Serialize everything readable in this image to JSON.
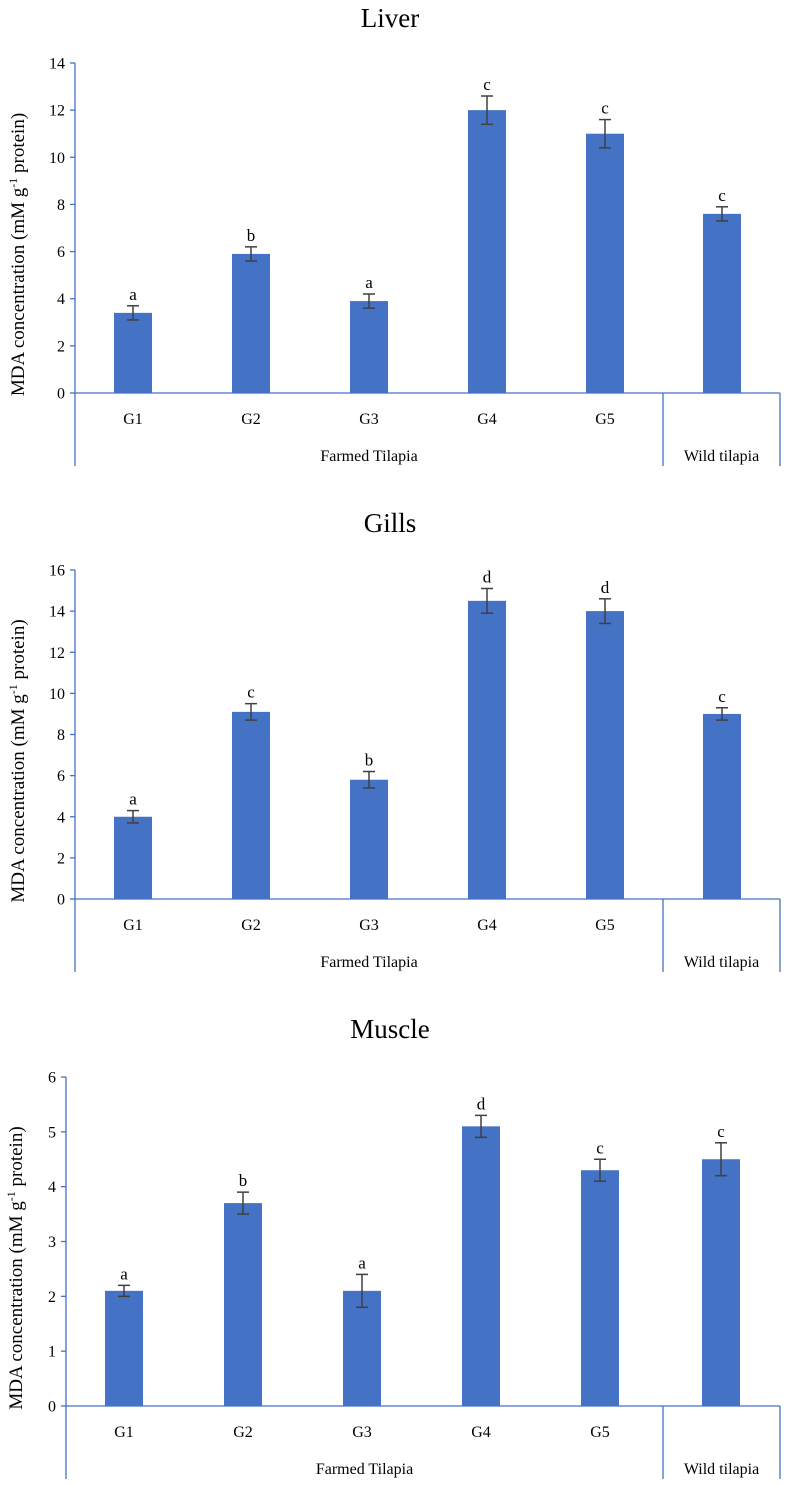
{
  "chart_data": [
    {
      "type": "bar",
      "title": "Liver",
      "ylabel": "MDA concentration (mM g-1 protein)",
      "ylabel_parts": {
        "prefix": "MDA concentration (mM g",
        "sup": "-1",
        "suffix": " protein)"
      },
      "ylim": [
        0,
        14
      ],
      "yticks": [
        0,
        2,
        4,
        6,
        8,
        10,
        12,
        14
      ],
      "categories": [
        "G1",
        "G2",
        "G3",
        "G4",
        "G5",
        ""
      ],
      "values": [
        3.4,
        5.9,
        3.9,
        12.0,
        11.0,
        7.6
      ],
      "errors": [
        0.3,
        0.3,
        0.3,
        0.6,
        0.6,
        0.3
      ],
      "significance": [
        "a",
        "b",
        "a",
        "c",
        "c",
        "c"
      ],
      "groups": [
        {
          "label": "Farmed Tilapia",
          "span": [
            0,
            4
          ]
        },
        {
          "label": "Wild tilapia",
          "span": [
            5,
            5
          ]
        }
      ],
      "color": "#4472C4"
    },
    {
      "type": "bar",
      "title": "Gills",
      "ylabel": "MDA concentration (mM g-1 protein)",
      "ylabel_parts": {
        "prefix": "MDA concentration (mM g",
        "sup": "-1",
        "suffix": " protein)"
      },
      "ylim": [
        0,
        16
      ],
      "yticks": [
        0,
        2,
        4,
        6,
        8,
        10,
        12,
        14,
        16
      ],
      "categories": [
        "G1",
        "G2",
        "G3",
        "G4",
        "G5",
        ""
      ],
      "values": [
        4.0,
        9.1,
        5.8,
        14.5,
        14.0,
        9.0
      ],
      "errors": [
        0.3,
        0.4,
        0.4,
        0.6,
        0.6,
        0.3
      ],
      "significance": [
        "a",
        "c",
        "b",
        "d",
        "d",
        "c"
      ],
      "groups": [
        {
          "label": "Farmed Tilapia",
          "span": [
            0,
            4
          ]
        },
        {
          "label": "Wild tilapia",
          "span": [
            5,
            5
          ]
        }
      ],
      "color": "#4472C4"
    },
    {
      "type": "bar",
      "title": "Muscle",
      "ylabel": "MDA concentration (mM g-1 protein)",
      "ylabel_parts": {
        "prefix": "MDA concentration (mM g",
        "sup": "-1",
        "suffix": " protein)"
      },
      "ylim": [
        0,
        6
      ],
      "yticks": [
        0,
        1,
        2,
        3,
        4,
        5,
        6
      ],
      "categories": [
        "G1",
        "G2",
        "G3",
        "G4",
        "G5",
        ""
      ],
      "values": [
        2.1,
        3.7,
        2.1,
        5.1,
        4.3,
        4.5
      ],
      "errors": [
        0.1,
        0.2,
        0.3,
        0.2,
        0.2,
        0.3
      ],
      "significance": [
        "a",
        "b",
        "a",
        "d",
        "c",
        "c"
      ],
      "groups": [
        {
          "label": "Farmed Tilapia",
          "span": [
            0,
            4
          ]
        },
        {
          "label": "Wild tilapia",
          "span": [
            5,
            5
          ]
        }
      ],
      "color": "#4472C4"
    }
  ],
  "colors": {
    "bar": "#4472C4",
    "axis": "#4472C4",
    "errorbar": "#404040"
  }
}
